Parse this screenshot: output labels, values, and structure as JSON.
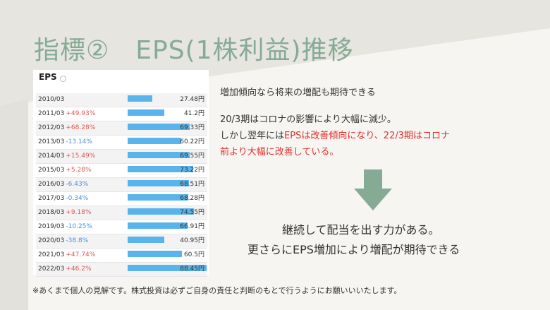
{
  "title": "指標②　EPS(1株利益)推移",
  "eps_heading": "EPS",
  "rows": [
    {
      "year": "2010/03",
      "change": "",
      "value": "27.48円",
      "eps": 27.48
    },
    {
      "year": "2011/03",
      "change": "+49.93%",
      "value": "41.2円",
      "eps": 41.2
    },
    {
      "year": "2012/03",
      "change": "+68.28%",
      "value": "69.33円",
      "eps": 69.33
    },
    {
      "year": "2013/03",
      "change": "-13.14%",
      "value": "60.22円",
      "eps": 60.22
    },
    {
      "year": "2014/03",
      "change": "+15.49%",
      "value": "69.55円",
      "eps": 69.55
    },
    {
      "year": "2015/03",
      "change": "+5.28%",
      "value": "73.22円",
      "eps": 73.22
    },
    {
      "year": "2016/03",
      "change": "-6.43%",
      "value": "68.51円",
      "eps": 68.51
    },
    {
      "year": "2017/03",
      "change": "-0.34%",
      "value": "68.28円",
      "eps": 68.28
    },
    {
      "year": "2018/03",
      "change": "+9.18%",
      "value": "74.55円",
      "eps": 74.55
    },
    {
      "year": "2019/03",
      "change": "-10.25%",
      "value": "66.91円",
      "eps": 66.91
    },
    {
      "year": "2020/03",
      "change": "-38.8%",
      "value": "40.95円",
      "eps": 40.95
    },
    {
      "year": "2021/03",
      "change": "+47.74%",
      "value": "60.5円",
      "eps": 60.5
    },
    {
      "year": "2022/03",
      "change": "+46.2%",
      "value": "88.45円",
      "eps": 88.45
    }
  ],
  "text": {
    "line1": "増加傾向なら将来の増配も期待できる",
    "line2": "20/3期はコロナの影響により大幅に減少。",
    "line3a": "しかし翌年には",
    "line3b": "EPSは改善傾向になり、22/3期はコロナ",
    "line4": "前より大幅に改善している。",
    "conclusion1": "継続して配当を出す力がある。",
    "conclusion2": "更さらにEPS増加により増配が期待できる",
    "note": "※あくまで個人の見解です。株式投資は必ずご自身の責任と判断のもとで行うようにお願いいいたします。"
  },
  "colors": {
    "title": "#86ab95",
    "bar": "#5ab4ec",
    "arrow": "#86ab95",
    "highlight": "#e53030"
  }
}
